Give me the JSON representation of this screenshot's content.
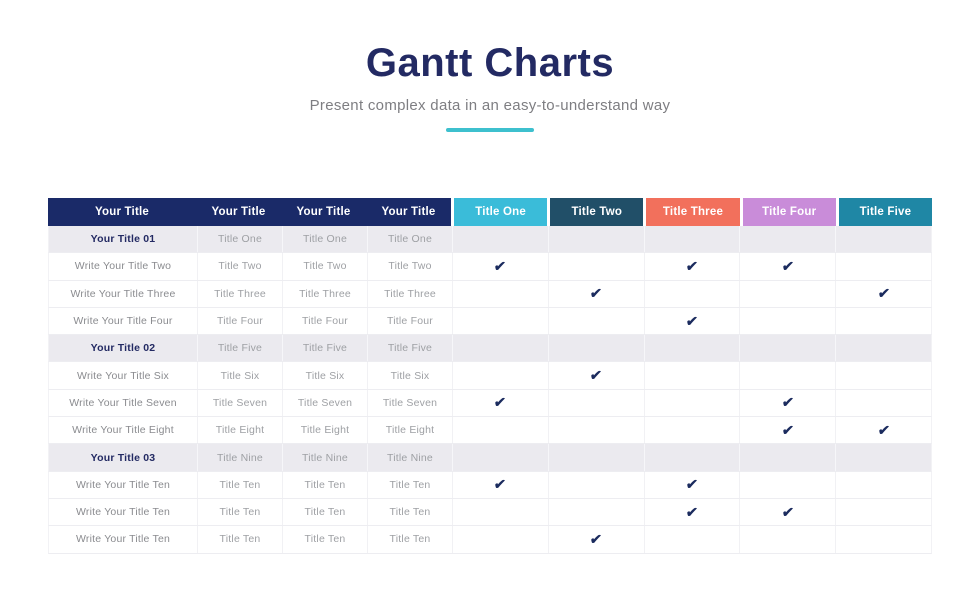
{
  "slide": {
    "title": "Gantt Charts",
    "subtitle": "Present complex data in an easy-to-understand way",
    "accent_color": "#3EC0CE"
  },
  "chart_data": {
    "type": "table",
    "title": "Gantt Charts",
    "left_headers": [
      "Your Title",
      "Your Title",
      "Your Title",
      "Your Title"
    ],
    "columns": [
      {
        "label": "Title One",
        "color": "#3ABCD9"
      },
      {
        "label": "Title Two",
        "color": "#214F68"
      },
      {
        "label": "Title Three",
        "color": "#F2705C"
      },
      {
        "label": "Title Four",
        "color": "#C98CD9"
      },
      {
        "label": "Title Five",
        "color": "#1F87A5"
      }
    ],
    "header_bg": "#1A2A68",
    "check_glyph": "✔",
    "check_color": "#1B2B5E",
    "section_bg": "#EBEAEF",
    "rows": [
      {
        "type": "section",
        "title": "Your Title 01",
        "cells": [
          "Title One",
          "Title One",
          "Title One"
        ],
        "checks": [
          false,
          false,
          false,
          false,
          false
        ]
      },
      {
        "type": "task",
        "title": "Write Your Title Two",
        "cells": [
          "Title Two",
          "Title Two",
          "Title Two"
        ],
        "checks": [
          true,
          false,
          true,
          true,
          false
        ]
      },
      {
        "type": "task",
        "title": "Write Your Title Three",
        "cells": [
          "Title Three",
          "Title Three",
          "Title Three"
        ],
        "checks": [
          false,
          true,
          false,
          false,
          true
        ]
      },
      {
        "type": "task",
        "title": "Write Your Title Four",
        "cells": [
          "Title Four",
          "Title Four",
          "Title Four"
        ],
        "checks": [
          false,
          false,
          true,
          false,
          false
        ]
      },
      {
        "type": "section",
        "title": "Your Title 02",
        "cells": [
          "Title Five",
          "Title Five",
          "Title Five"
        ],
        "checks": [
          false,
          false,
          false,
          false,
          false
        ]
      },
      {
        "type": "task",
        "title": "Write Your Title Six",
        "cells": [
          "Title Six",
          "Title Six",
          "Title Six"
        ],
        "checks": [
          false,
          true,
          false,
          false,
          false
        ]
      },
      {
        "type": "task",
        "title": "Write Your Title Seven",
        "cells": [
          "Title Seven",
          "Title Seven",
          "Title Seven"
        ],
        "checks": [
          true,
          false,
          false,
          true,
          false
        ]
      },
      {
        "type": "task",
        "title": "Write Your Title Eight",
        "cells": [
          "Title Eight",
          "Title Eight",
          "Title Eight"
        ],
        "checks": [
          false,
          false,
          false,
          true,
          true
        ]
      },
      {
        "type": "section",
        "title": "Your Title 03",
        "cells": [
          "Title Nine",
          "Title Nine",
          "Title Nine"
        ],
        "checks": [
          false,
          false,
          false,
          false,
          false
        ]
      },
      {
        "type": "task",
        "title": "Write Your Title Ten",
        "cells": [
          "Title Ten",
          "Title Ten",
          "Title Ten"
        ],
        "checks": [
          true,
          false,
          true,
          false,
          false
        ]
      },
      {
        "type": "task",
        "title": "Write Your Title Ten",
        "cells": [
          "Title Ten",
          "Title Ten",
          "Title Ten"
        ],
        "checks": [
          false,
          false,
          true,
          true,
          false
        ]
      },
      {
        "type": "task",
        "title": "Write Your Title Ten",
        "cells": [
          "Title Ten",
          "Title Ten",
          "Title Ten"
        ],
        "checks": [
          false,
          true,
          false,
          false,
          false
        ]
      }
    ]
  }
}
